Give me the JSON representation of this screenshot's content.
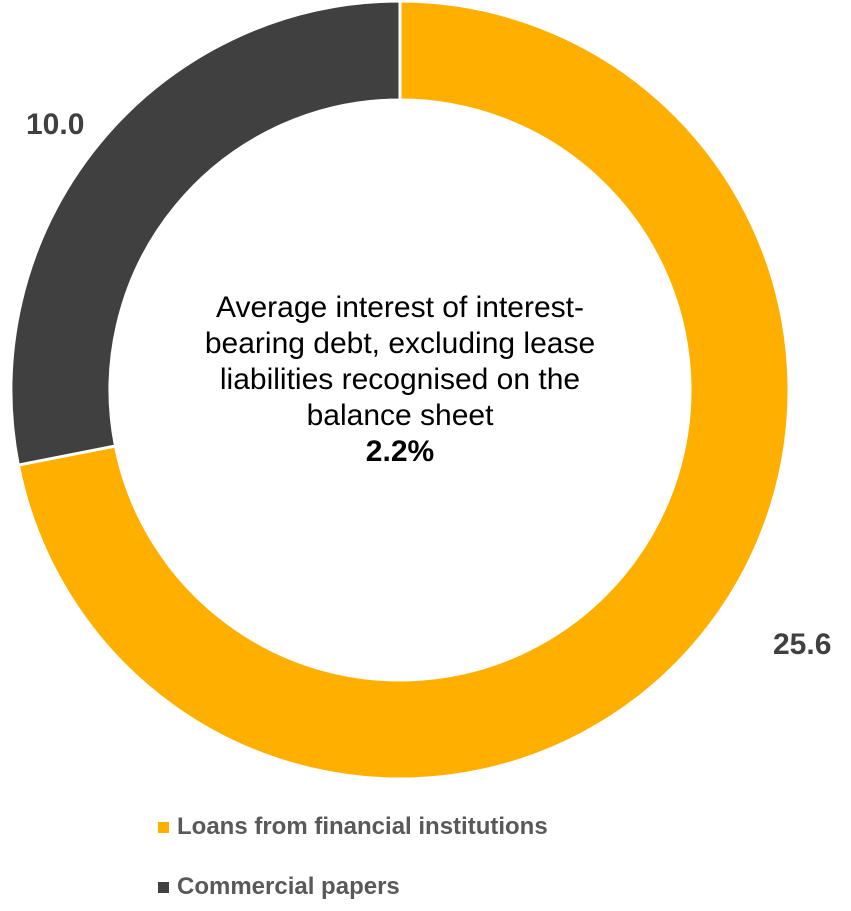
{
  "chart_data": {
    "type": "pie",
    "donut": true,
    "categories": [
      "Loans from financial institutions",
      "Commercial papers"
    ],
    "values": [
      25.6,
      10.0
    ],
    "value_labels": [
      "25.6",
      "10.0"
    ],
    "colors": [
      "#FFAF00",
      "#404040"
    ],
    "center_text": {
      "lines": [
        "Average interest of interest-",
        "bearing debt, excluding lease",
        "liabilities recognised on the",
        "balance sheet"
      ],
      "value": "2.2%"
    },
    "legend_position": "bottom"
  }
}
